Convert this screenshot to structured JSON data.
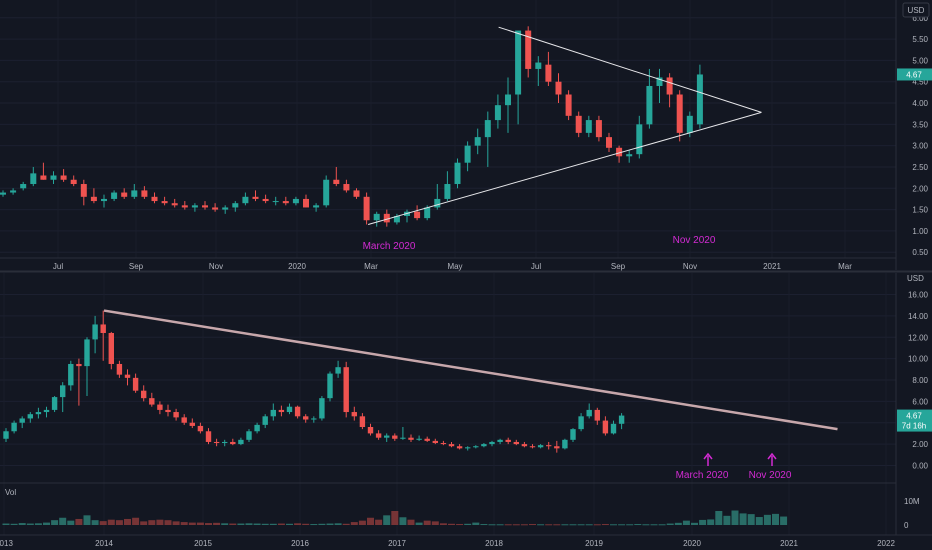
{
  "chart_data": [
    {
      "type": "candlestick",
      "currency": "USD",
      "xaxis_labels": [
        "Jul",
        "Sep",
        "Nov",
        "2020",
        "Mar",
        "May",
        "Jul",
        "Sep",
        "Nov",
        "2021",
        "Mar"
      ],
      "y_ticks": [
        "0.50",
        "1.00",
        "1.50",
        "2.00",
        "2.50",
        "3.00",
        "3.50",
        "4.00",
        "4.50",
        "5.00",
        "5.50",
        "6.00"
      ],
      "ylim": [
        0.2,
        6.3
      ],
      "last_price": "4.67",
      "annotations": [
        "March 2020",
        "Nov 2020"
      ],
      "candles": [
        [
          1.85,
          1.95,
          1.8,
          1.9
        ],
        [
          1.9,
          2.0,
          1.85,
          1.95
        ],
        [
          2.0,
          2.15,
          1.95,
          2.1
        ],
        [
          2.1,
          2.5,
          2.05,
          2.35
        ],
        [
          2.3,
          2.6,
          2.2,
          2.2
        ],
        [
          2.2,
          2.4,
          2.1,
          2.3
        ],
        [
          2.3,
          2.45,
          2.15,
          2.2
        ],
        [
          2.2,
          2.3,
          2.05,
          2.1
        ],
        [
          2.1,
          2.2,
          1.6,
          1.8
        ],
        [
          1.8,
          2.0,
          1.65,
          1.7
        ],
        [
          1.7,
          1.85,
          1.55,
          1.75
        ],
        [
          1.75,
          1.95,
          1.7,
          1.9
        ],
        [
          1.9,
          2.0,
          1.75,
          1.8
        ],
        [
          1.8,
          2.1,
          1.75,
          1.95
        ],
        [
          1.95,
          2.05,
          1.75,
          1.8
        ],
        [
          1.8,
          1.9,
          1.65,
          1.7
        ],
        [
          1.7,
          1.8,
          1.6,
          1.65
        ],
        [
          1.65,
          1.75,
          1.55,
          1.6
        ],
        [
          1.6,
          1.7,
          1.5,
          1.55
        ],
        [
          1.55,
          1.65,
          1.45,
          1.6
        ],
        [
          1.6,
          1.7,
          1.5,
          1.55
        ],
        [
          1.55,
          1.65,
          1.45,
          1.5
        ],
        [
          1.5,
          1.6,
          1.4,
          1.55
        ],
        [
          1.55,
          1.7,
          1.45,
          1.65
        ],
        [
          1.65,
          1.9,
          1.6,
          1.8
        ],
        [
          1.8,
          1.95,
          1.7,
          1.75
        ],
        [
          1.75,
          1.85,
          1.65,
          1.7
        ],
        [
          1.7,
          1.8,
          1.6,
          1.7
        ],
        [
          1.7,
          1.8,
          1.6,
          1.65
        ],
        [
          1.65,
          1.8,
          1.6,
          1.75
        ],
        [
          1.75,
          1.85,
          1.55,
          1.55
        ],
        [
          1.55,
          1.65,
          1.45,
          1.6
        ],
        [
          1.6,
          2.3,
          1.55,
          2.2
        ],
        [
          2.2,
          2.5,
          2.05,
          2.1
        ],
        [
          2.1,
          2.2,
          1.9,
          1.95
        ],
        [
          1.95,
          2.0,
          1.75,
          1.8
        ],
        [
          1.8,
          1.9,
          1.15,
          1.25
        ],
        [
          1.25,
          1.45,
          1.1,
          1.4
        ],
        [
          1.4,
          1.5,
          1.1,
          1.2
        ],
        [
          1.2,
          1.4,
          1.15,
          1.35
        ],
        [
          1.35,
          1.5,
          1.2,
          1.45
        ],
        [
          1.45,
          1.6,
          1.25,
          1.3
        ],
        [
          1.3,
          1.6,
          1.25,
          1.55
        ],
        [
          1.55,
          2.1,
          1.5,
          1.75
        ],
        [
          1.75,
          2.4,
          1.7,
          2.1
        ],
        [
          2.1,
          2.7,
          2.0,
          2.6
        ],
        [
          2.6,
          3.1,
          2.4,
          3.0
        ],
        [
          3.0,
          3.4,
          2.8,
          3.2
        ],
        [
          3.2,
          3.8,
          2.5,
          3.6
        ],
        [
          3.6,
          4.2,
          3.4,
          3.95
        ],
        [
          3.95,
          4.6,
          3.3,
          4.2
        ],
        [
          4.2,
          5.7,
          3.5,
          5.7
        ],
        [
          5.7,
          5.8,
          4.6,
          4.8
        ],
        [
          4.8,
          5.1,
          4.4,
          4.95
        ],
        [
          4.9,
          5.2,
          4.4,
          4.5
        ],
        [
          4.5,
          4.7,
          4.0,
          4.2
        ],
        [
          4.2,
          4.3,
          3.6,
          3.7
        ],
        [
          3.7,
          3.8,
          3.2,
          3.3
        ],
        [
          3.3,
          3.7,
          3.2,
          3.6
        ],
        [
          3.6,
          3.7,
          3.1,
          3.2
        ],
        [
          3.2,
          3.3,
          2.85,
          2.95
        ],
        [
          2.95,
          3.0,
          2.6,
          2.75
        ],
        [
          2.75,
          2.9,
          2.6,
          2.8
        ],
        [
          2.8,
          3.7,
          2.7,
          3.5
        ],
        [
          3.5,
          4.8,
          3.4,
          4.4
        ],
        [
          4.4,
          4.8,
          4.0,
          4.6
        ],
        [
          4.6,
          4.7,
          3.9,
          4.2
        ],
        [
          4.2,
          4.3,
          3.1,
          3.3
        ],
        [
          3.3,
          3.8,
          3.2,
          3.7
        ],
        [
          3.5,
          4.9,
          3.4,
          4.67
        ]
      ],
      "triangle": [
        [
          0.535,
          5.78
        ],
        [
          0.817,
          3.78
        ],
        [
          0.395,
          1.15
        ]
      ]
    },
    {
      "type": "candlestick",
      "currency": "USD",
      "xaxis_labels": [
        "2013",
        "2014",
        "2015",
        "2016",
        "2017",
        "2018",
        "2019",
        "2020",
        "2021",
        "2022"
      ],
      "y_ticks": [
        "0.00",
        "2.00",
        "4.00",
        "6.00",
        "8.00",
        "10.00",
        "12.00",
        "14.00",
        "16.00"
      ],
      "ylim": [
        -0.8,
        16.8
      ],
      "last_price": "4.67",
      "countdown": "7d 16h",
      "annotations": [
        "March 2020",
        "Nov 2020"
      ],
      "candles": [
        [
          2.5,
          3.5,
          2.2,
          3.2
        ],
        [
          3.2,
          4.2,
          3.0,
          4.0
        ],
        [
          4.0,
          4.6,
          3.5,
          4.4
        ],
        [
          4.4,
          5.0,
          4.0,
          4.8
        ],
        [
          4.8,
          5.4,
          4.4,
          5.0
        ],
        [
          5.0,
          5.5,
          4.5,
          5.2
        ],
        [
          5.2,
          6.5,
          5.0,
          6.4
        ],
        [
          6.4,
          7.8,
          5.0,
          7.5
        ],
        [
          7.5,
          9.8,
          7.0,
          9.5
        ],
        [
          9.5,
          10.0,
          5.6,
          9.3
        ],
        [
          9.3,
          12.0,
          6.5,
          11.8
        ],
        [
          11.8,
          14.0,
          10.5,
          13.2
        ],
        [
          13.2,
          14.5,
          9.8,
          12.4
        ],
        [
          12.4,
          12.5,
          9.0,
          9.5
        ],
        [
          9.5,
          9.8,
          8.2,
          8.5
        ],
        [
          8.5,
          9.0,
          7.5,
          8.2
        ],
        [
          8.2,
          8.6,
          6.8,
          7.0
        ],
        [
          7.0,
          7.5,
          6.0,
          6.3
        ],
        [
          6.3,
          6.8,
          5.5,
          5.7
        ],
        [
          5.7,
          6.0,
          4.8,
          5.2
        ],
        [
          5.2,
          5.7,
          4.6,
          5.0
        ],
        [
          5.0,
          5.3,
          4.2,
          4.5
        ],
        [
          4.5,
          4.8,
          3.8,
          4.0
        ],
        [
          4.0,
          4.4,
          3.5,
          3.7
        ],
        [
          3.7,
          4.0,
          3.0,
          3.2
        ],
        [
          3.2,
          3.5,
          2.0,
          2.2
        ],
        [
          2.2,
          2.5,
          1.8,
          2.1
        ],
        [
          2.1,
          2.4,
          1.8,
          2.2
        ],
        [
          2.2,
          2.5,
          1.9,
          2.0
        ],
        [
          2.0,
          2.6,
          1.9,
          2.4
        ],
        [
          2.4,
          3.4,
          2.2,
          3.2
        ],
        [
          3.2,
          4.0,
          3.0,
          3.8
        ],
        [
          3.8,
          4.8,
          3.5,
          4.6
        ],
        [
          4.6,
          5.8,
          4.2,
          5.2
        ],
        [
          5.2,
          5.6,
          4.6,
          5.0
        ],
        [
          5.0,
          5.8,
          4.8,
          5.5
        ],
        [
          5.5,
          5.6,
          4.4,
          4.6
        ],
        [
          4.6,
          4.8,
          4.0,
          4.3
        ],
        [
          4.3,
          4.6,
          4.0,
          4.4
        ],
        [
          4.4,
          6.5,
          4.2,
          6.3
        ],
        [
          6.3,
          8.8,
          6.0,
          8.6
        ],
        [
          8.6,
          9.8,
          8.2,
          9.2
        ],
        [
          9.2,
          9.7,
          4.5,
          5.0
        ],
        [
          5.0,
          5.5,
          4.2,
          4.6
        ],
        [
          4.6,
          4.9,
          3.4,
          3.6
        ],
        [
          3.6,
          3.9,
          2.8,
          3.0
        ],
        [
          3.0,
          3.3,
          2.4,
          2.6
        ],
        [
          2.6,
          3.0,
          2.2,
          2.8
        ],
        [
          2.8,
          3.0,
          2.3,
          2.5
        ],
        [
          2.5,
          3.6,
          2.4,
          2.6
        ],
        [
          2.6,
          2.9,
          2.2,
          2.4
        ],
        [
          2.4,
          2.8,
          2.3,
          2.5
        ],
        [
          2.5,
          2.7,
          2.2,
          2.3
        ],
        [
          2.3,
          2.5,
          2.0,
          2.1
        ],
        [
          2.1,
          2.3,
          1.9,
          2.0
        ],
        [
          2.0,
          2.2,
          1.7,
          1.8
        ],
        [
          1.8,
          2.0,
          1.5,
          1.6
        ],
        [
          1.6,
          1.8,
          1.4,
          1.7
        ],
        [
          1.7,
          1.9,
          1.6,
          1.8
        ],
        [
          1.8,
          2.1,
          1.7,
          2.0
        ],
        [
          2.0,
          2.3,
          1.8,
          2.2
        ],
        [
          2.2,
          2.5,
          2.0,
          2.4
        ],
        [
          2.4,
          2.6,
          2.0,
          2.2
        ],
        [
          2.2,
          2.4,
          1.9,
          2.0
        ],
        [
          2.0,
          2.2,
          1.7,
          1.8
        ],
        [
          1.8,
          2.0,
          1.6,
          1.7
        ],
        [
          1.7,
          2.0,
          1.6,
          1.9
        ],
        [
          1.9,
          2.2,
          1.5,
          1.8
        ],
        [
          1.8,
          2.3,
          1.2,
          1.6
        ],
        [
          1.6,
          2.5,
          1.5,
          2.4
        ],
        [
          2.4,
          3.5,
          2.2,
          3.4
        ],
        [
          3.4,
          4.9,
          3.2,
          4.6
        ],
        [
          4.6,
          5.8,
          4.4,
          5.2
        ],
        [
          5.2,
          5.4,
          3.8,
          4.2
        ],
        [
          4.2,
          4.6,
          2.8,
          3.0
        ],
        [
          3.0,
          4.2,
          2.9,
          3.9
        ],
        [
          3.9,
          4.9,
          3.4,
          4.67
        ]
      ],
      "resistance": [
        [
          "2014",
          14.5
        ],
        [
          "2021.5",
          3.4
        ]
      ]
    },
    {
      "type": "bar",
      "title": "Vol",
      "y_ticks": [
        "10M",
        "0"
      ],
      "ylim": [
        0,
        12000000
      ],
      "values": [
        600000,
        500000,
        800000,
        600000,
        700000,
        1000000,
        2000000,
        3000000,
        1800000,
        2500000,
        4000000,
        2000000,
        1600000,
        2200000,
        2000000,
        2500000,
        3000000,
        1500000,
        2000000,
        2200000,
        2000000,
        1500000,
        1200000,
        1000000,
        1000000,
        800000,
        900000,
        700000,
        600000,
        600000,
        700000,
        600000,
        500000,
        500000,
        600000,
        500000,
        700000,
        500000,
        400000,
        500000,
        600000,
        700000,
        500000,
        1200000,
        1800000,
        3000000,
        2200000,
        4000000,
        5800000,
        3200000,
        2200000,
        1000000,
        1800000,
        1500000,
        700000,
        500000,
        400000,
        500000,
        1000000,
        400000,
        300000,
        300000,
        300000,
        300000,
        300000,
        400000,
        300000,
        300000,
        300000,
        300000,
        300000,
        300000,
        300000,
        300000,
        400000,
        300000,
        300000,
        300000,
        400000,
        300000,
        300000,
        300000,
        600000,
        900000,
        1800000,
        900000,
        2100000,
        2300000,
        5800000,
        3800000,
        6000000,
        4800000,
        4500000,
        3300000,
        4200000,
        4600000,
        3500000
      ]
    }
  ],
  "colors": {
    "up": "#26a69a",
    "down": "#ef5350",
    "annotation": "#d32bd3",
    "line": "#e7e7ea",
    "resistance": "#c7a7ab"
  }
}
